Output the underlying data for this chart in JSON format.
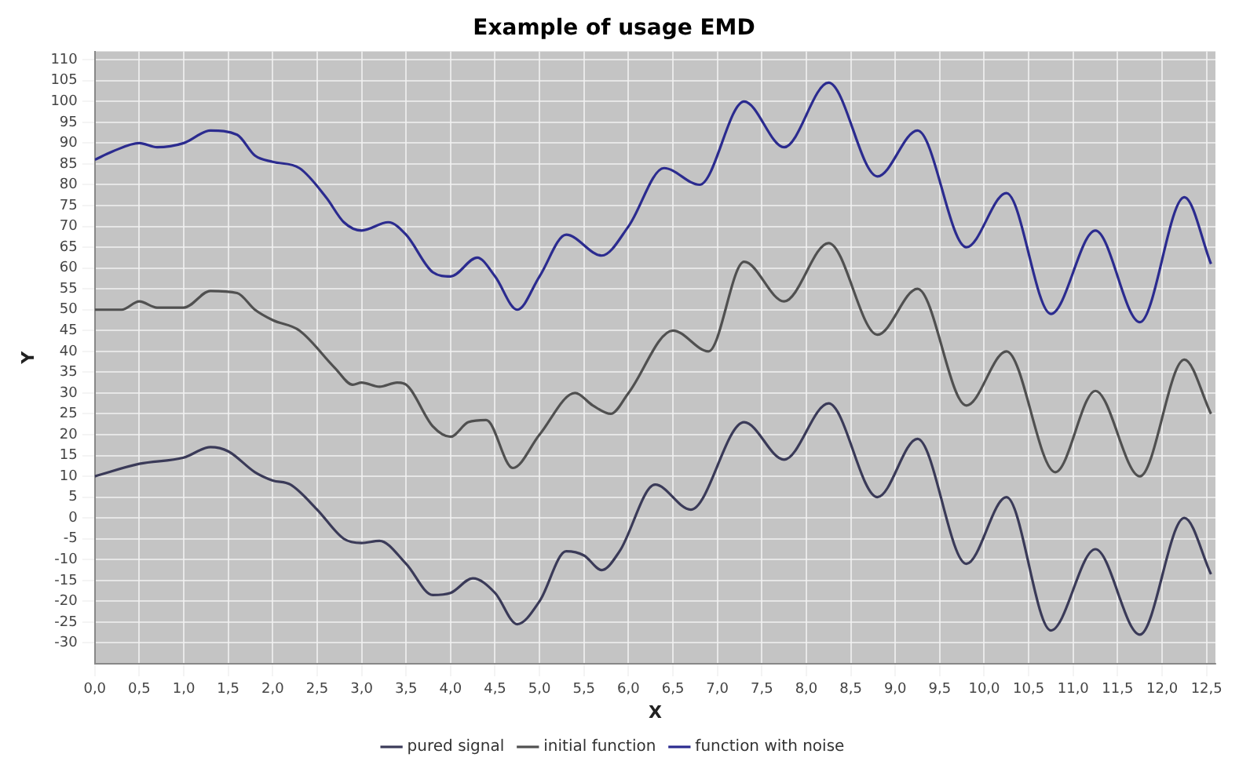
{
  "chart_data": {
    "type": "line",
    "title": "Example of usage EMD",
    "xlabel": "X",
    "ylabel": "Y",
    "xlim": [
      0,
      12.6
    ],
    "ylim": [
      -35,
      112
    ],
    "xticks": [
      {
        "value": 0,
        "label": "0,0"
      },
      {
        "value": 0.5,
        "label": "0,5"
      },
      {
        "value": 1,
        "label": "1,0"
      },
      {
        "value": 1.5,
        "label": "1,5"
      },
      {
        "value": 2,
        "label": "2,0"
      },
      {
        "value": 2.5,
        "label": "2,5"
      },
      {
        "value": 3,
        "label": "3,0"
      },
      {
        "value": 3.5,
        "label": "3,5"
      },
      {
        "value": 4,
        "label": "4,0"
      },
      {
        "value": 4.5,
        "label": "4,5"
      },
      {
        "value": 5,
        "label": "5,0"
      },
      {
        "value": 5.5,
        "label": "5,5"
      },
      {
        "value": 6,
        "label": "6,0"
      },
      {
        "value": 6.5,
        "label": "6,5"
      },
      {
        "value": 7,
        "label": "7,0"
      },
      {
        "value": 7.5,
        "label": "7,5"
      },
      {
        "value": 8,
        "label": "8,0"
      },
      {
        "value": 8.5,
        "label": "8,5"
      },
      {
        "value": 9,
        "label": "9,0"
      },
      {
        "value": 9.5,
        "label": "9,5"
      },
      {
        "value": 10,
        "label": "10,0"
      },
      {
        "value": 10.5,
        "label": "10,5"
      },
      {
        "value": 11,
        "label": "11,0"
      },
      {
        "value": 11.5,
        "label": "11,5"
      },
      {
        "value": 12,
        "label": "12,0"
      },
      {
        "value": 12.5,
        "label": "12,5"
      }
    ],
    "yticks": [
      -30,
      -25,
      -20,
      -15,
      -10,
      -5,
      0,
      5,
      10,
      15,
      20,
      25,
      30,
      35,
      40,
      45,
      50,
      55,
      60,
      65,
      70,
      75,
      80,
      85,
      90,
      95,
      100,
      105,
      110
    ],
    "grid": true,
    "legend": "bottom",
    "marker": "none",
    "line_style": "solid",
    "series": [
      {
        "name": "pured signal",
        "color": "#3a3a58",
        "x": [
          0,
          0.5,
          1.0,
          1.3,
          1.5,
          1.8,
          2.0,
          2.2,
          2.5,
          2.8,
          3.0,
          3.2,
          3.5,
          3.8,
          4.0,
          4.25,
          4.5,
          4.75,
          5.0,
          5.3,
          5.5,
          5.7,
          5.9,
          6.3,
          6.7,
          7.3,
          7.75,
          8.25,
          8.8,
          9.25,
          9.8,
          10.25,
          10.75,
          11.25,
          11.75,
          12.25,
          12.55
        ],
        "values": [
          10,
          13,
          14.5,
          17,
          16,
          11,
          9,
          8,
          2,
          -5,
          -6,
          -5.5,
          -11,
          -18.5,
          -18,
          -14.5,
          -18,
          -25.5,
          -20,
          -8,
          -9,
          -12.5,
          -8,
          8,
          2,
          23,
          14,
          27.5,
          5,
          19,
          -11,
          5,
          -27,
          -7.5,
          -28,
          0,
          -13.5
        ]
      },
      {
        "name": "initial function",
        "color": "#505050",
        "x": [
          0,
          0.3,
          0.5,
          0.7,
          1.0,
          1.3,
          1.6,
          1.8,
          2.0,
          2.3,
          2.7,
          2.9,
          3.0,
          3.2,
          3.4,
          3.5,
          3.8,
          4.0,
          4.2,
          4.4,
          4.7,
          5.0,
          5.4,
          5.6,
          5.8,
          6.0,
          6.5,
          6.9,
          7.3,
          7.75,
          8.25,
          8.8,
          9.25,
          9.8,
          10.25,
          10.8,
          11.25,
          11.75,
          12.25,
          12.55
        ],
        "values": [
          50,
          50,
          52,
          50.5,
          50.5,
          54.5,
          54,
          50,
          47.5,
          45,
          36,
          32,
          32.5,
          31.5,
          32.5,
          32,
          22,
          19.5,
          23,
          23.5,
          12,
          20,
          30,
          27,
          25,
          30,
          45,
          40,
          61.5,
          52,
          66,
          44,
          55,
          27,
          40,
          11,
          30.5,
          10,
          38,
          25
        ]
      },
      {
        "name": "function with noise",
        "color": "#2b2b8f",
        "x": [
          0,
          0.2,
          0.5,
          0.7,
          1.0,
          1.3,
          1.6,
          1.8,
          2.0,
          2.3,
          2.6,
          2.8,
          3.0,
          3.3,
          3.5,
          3.8,
          4.0,
          4.3,
          4.5,
          4.75,
          5.0,
          5.3,
          5.7,
          6.0,
          6.4,
          6.8,
          7.3,
          7.75,
          8.25,
          8.8,
          9.25,
          9.8,
          10.25,
          10.75,
          11.25,
          11.75,
          12.25,
          12.55
        ],
        "values": [
          86,
          88,
          90,
          89,
          90,
          93,
          92,
          87,
          85.5,
          84,
          77,
          71,
          69,
          71,
          68,
          59,
          58,
          62.5,
          58,
          50,
          58,
          68,
          63,
          70,
          84,
          80,
          100,
          89,
          104.5,
          82,
          93,
          65,
          78,
          49,
          69,
          47,
          77,
          61
        ]
      }
    ]
  }
}
